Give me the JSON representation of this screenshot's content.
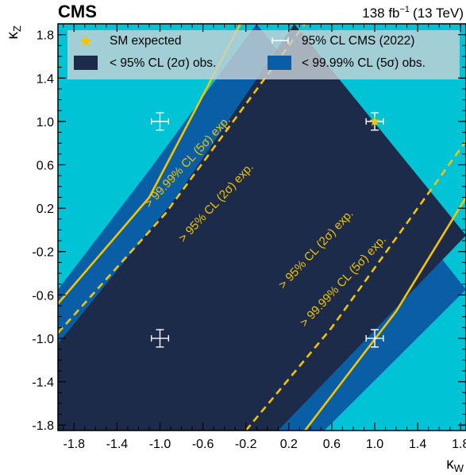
{
  "header": {
    "experiment": "CMS",
    "luminosity_value": "138 fb",
    "luminosity_exp": "−1",
    "energy": "(13 TeV)"
  },
  "colors": {
    "region_5sigma_outer": "#00c4d6",
    "region_5sigma": "#0a5ea6",
    "region_2sigma": "#1c2b4a",
    "expected_line": "#f5c400",
    "cms_marker": "#ffffff",
    "sm_star": "#f5c400"
  },
  "chart_data": {
    "type": "contour",
    "xlabel": "κW",
    "ylabel": "κZ",
    "xlim": [
      -1.95,
      1.85
    ],
    "ylim": [
      -1.85,
      1.9
    ],
    "xticks": [
      -1.8,
      -1.4,
      -1.0,
      -0.6,
      -0.2,
      0.2,
      0.6,
      1.0,
      1.4,
      1.8
    ],
    "xtick_labels": [
      "-1.8",
      "-1.4",
      "-1.0",
      "-0.6",
      "-0.2",
      "0.2",
      "0.6",
      "1.0",
      "1.4",
      "1.8"
    ],
    "yticks": [
      -1.8,
      -1.4,
      -1.0,
      -0.6,
      -0.2,
      0.2,
      0.6,
      1.0,
      1.4,
      1.8
    ],
    "ytick_labels": [
      "-1.8",
      "-1.4",
      "-1.0",
      "-0.6",
      "-0.2",
      "0.2",
      "0.6",
      "1.0",
      "1.4",
      "1.8"
    ],
    "regions": [
      {
        "name": "< 99.99% CL (5σ) obs.",
        "lower": [
          [
            -1.95,
            -1.85
          ],
          [
            0.53,
            -1.85
          ],
          [
            1.85,
            -0.55
          ]
        ],
        "upper": [
          [
            -1.95,
            -0.55
          ],
          [
            -1.1,
            0.55
          ],
          [
            -0.1,
            1.9
          ]
        ]
      },
      {
        "name": "< 95% CL (2σ) obs.",
        "lower": [
          [
            -1.95,
            -1.85
          ],
          [
            0.1,
            -1.85
          ],
          [
            1.85,
            -0.05
          ]
        ],
        "upper": [
          [
            -1.95,
            -1.05
          ],
          [
            -0.85,
            0.3
          ],
          [
            0.25,
            1.9
          ]
        ]
      }
    ],
    "expected_contours": [
      {
        "label": "> 99.99% CL (5σ) exp.",
        "style": "solid",
        "points": [
          [
            -1.95,
            -0.68
          ],
          [
            -1.1,
            0.3
          ],
          [
            -0.25,
            1.9
          ]
        ]
      },
      {
        "label": "> 95% CL (2σ) exp.",
        "style": "dashed",
        "points": [
          [
            -1.95,
            -0.95
          ],
          [
            -0.95,
            0.15
          ],
          [
            0.35,
            1.9
          ]
        ]
      },
      {
        "label": "> 95% CL (2σ) exp.",
        "style": "dashed",
        "points": [
          [
            -0.2,
            -1.85
          ],
          [
            0.6,
            -0.9
          ],
          [
            1.85,
            0.82
          ]
        ]
      },
      {
        "label": "> 99.99% CL (5σ) exp.",
        "style": "solid",
        "points": [
          [
            0.35,
            -1.85
          ],
          [
            1.2,
            -0.75
          ],
          [
            1.85,
            0.3
          ]
        ]
      }
    ],
    "band_labels": [
      {
        "text": "> 99.99% CL (5σ) exp.",
        "x": -1.1,
        "y": 0.2,
        "angle": -47
      },
      {
        "text": "> 95% CL (2σ) exp.",
        "x": -0.78,
        "y": -0.12,
        "angle": -47
      },
      {
        "text": "> 95% CL (2σ) exp.",
        "x": 0.15,
        "y": -0.55,
        "angle": -47
      },
      {
        "text": "> 99.99% CL (5σ) exp.",
        "x": 0.35,
        "y": -0.9,
        "angle": -47
      }
    ],
    "cms_2022_points": [
      {
        "x": 1.0,
        "y": 1.0,
        "xerr": 0.08,
        "yerr": 0.08
      },
      {
        "x": -1.0,
        "y": 1.0,
        "xerr": 0.08,
        "yerr": 0.08
      },
      {
        "x": -1.0,
        "y": -1.0,
        "xerr": 0.08,
        "yerr": 0.08
      },
      {
        "x": 1.0,
        "y": -1.0,
        "xerr": 0.08,
        "yerr": 0.08
      }
    ],
    "sm_expected": {
      "x": 1.0,
      "y": 1.0
    },
    "legend": {
      "placement": "top",
      "entries": [
        {
          "label": "SM expected",
          "symbol": "star"
        },
        {
          "label": "95% CL CMS (2022)",
          "symbol": "errorbar"
        },
        {
          "label": "< 95% CL (2σ) obs.",
          "symbol": "box-2sigma"
        },
        {
          "label": "< 99.99% CL (5σ) obs.",
          "symbol": "box-5sigma"
        }
      ]
    }
  }
}
